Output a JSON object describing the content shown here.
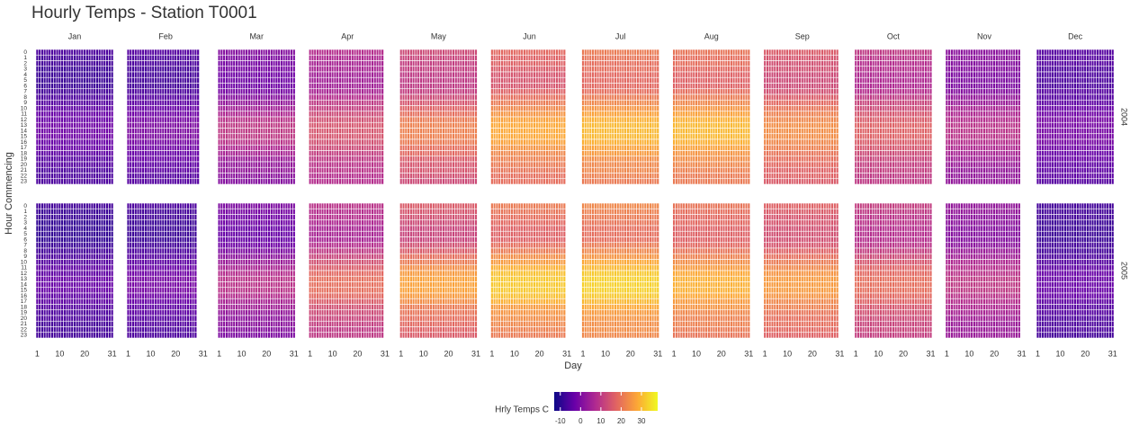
{
  "chart_data": {
    "type": "heatmap",
    "title": "Hourly Temps - Station T0001",
    "x_label": "Day",
    "y_label": "Hour Commencing",
    "legend_title": "Hrly Temps C",
    "months": [
      "Jan",
      "Feb",
      "Mar",
      "Apr",
      "May",
      "Jun",
      "Jul",
      "Aug",
      "Sep",
      "Oct",
      "Nov",
      "Dec"
    ],
    "years": [
      "2004",
      "2005"
    ],
    "xlim": [
      0.5,
      31.5
    ],
    "xticks": [
      1,
      10,
      20,
      31
    ],
    "ylim": [
      -0.5,
      23.5
    ],
    "yticks": [
      0,
      1,
      2,
      3,
      4,
      5,
      6,
      7,
      8,
      9,
      10,
      11,
      12,
      13,
      14,
      15,
      16,
      17,
      18,
      19,
      20,
      21,
      22,
      23
    ],
    "clim": [
      -13,
      38
    ],
    "colorbar_ticks": [
      -10,
      0,
      10,
      20,
      30
    ],
    "colormap": [
      "#0d0887",
      "#6a00a8",
      "#b12a90",
      "#e16462",
      "#fca636",
      "#f0f921"
    ],
    "values": [
      [
        [
          -6,
          -7,
          -7,
          -8,
          -8,
          -8,
          -8,
          -7,
          -6,
          -5,
          -4,
          -3,
          -3,
          -2,
          -2,
          -2,
          -3,
          -3,
          -4,
          -5,
          -5,
          -6,
          -6,
          -6
        ],
        [
          -5,
          -6,
          -6,
          -7,
          -7,
          -7,
          -7,
          -6,
          -5,
          -4,
          -3,
          -2,
          -1,
          0,
          0,
          0,
          -1,
          -2,
          -3,
          -3,
          -4,
          -4,
          -5,
          -5
        ],
        [
          1,
          0,
          -1,
          -1,
          -2,
          -2,
          -2,
          -1,
          1,
          3,
          5,
          7,
          9,
          10,
          10,
          10,
          9,
          7,
          6,
          4,
          3,
          3,
          2,
          1
        ],
        [
          8,
          7,
          6,
          6,
          5,
          5,
          5,
          6,
          8,
          10,
          11,
          13,
          14,
          15,
          15,
          15,
          14,
          13,
          11,
          10,
          9,
          9,
          8,
          8
        ],
        [
          13,
          12,
          11,
          11,
          10,
          10,
          10,
          11,
          13,
          15,
          17,
          19,
          21,
          22,
          22,
          22,
          21,
          19,
          18,
          16,
          15,
          15,
          14,
          13
        ],
        [
          18,
          17,
          17,
          16,
          15,
          15,
          15,
          17,
          19,
          21,
          23,
          25,
          27,
          28,
          28,
          28,
          27,
          25,
          23,
          22,
          21,
          20,
          19,
          19
        ],
        [
          21,
          20,
          19,
          19,
          18,
          18,
          18,
          19,
          21,
          23,
          25,
          27,
          29,
          30,
          30,
          30,
          29,
          27,
          26,
          24,
          23,
          23,
          22,
          21
        ],
        [
          20,
          19,
          19,
          18,
          17,
          17,
          17,
          19,
          21,
          23,
          25,
          27,
          29,
          30,
          30,
          30,
          29,
          27,
          25,
          24,
          23,
          22,
          21,
          21
        ],
        [
          16,
          15,
          14,
          14,
          13,
          13,
          13,
          14,
          16,
          18,
          20,
          22,
          23,
          24,
          24,
          24,
          23,
          22,
          20,
          19,
          18,
          17,
          17,
          16
        ],
        [
          10,
          9,
          8,
          8,
          7,
          7,
          7,
          8,
          10,
          12,
          13,
          15,
          16,
          17,
          17,
          17,
          16,
          15,
          13,
          12,
          11,
          11,
          10,
          10
        ],
        [
          2,
          2,
          1,
          1,
          0,
          0,
          0,
          1,
          3,
          4,
          6,
          7,
          8,
          9,
          9,
          9,
          8,
          7,
          6,
          5,
          4,
          3,
          3,
          3
        ],
        [
          -5,
          -5,
          -5,
          -6,
          -6,
          -6,
          -6,
          -5,
          -5,
          -4,
          -3,
          -2,
          -1,
          -1,
          -1,
          -1,
          -1,
          -2,
          -3,
          -3,
          -4,
          -4,
          -4,
          -5
        ]
      ],
      [
        [
          -7,
          -8,
          -8,
          -9,
          -9,
          -9,
          -9,
          -8,
          -7,
          -6,
          -5,
          -4,
          -4,
          -3,
          -3,
          -3,
          -4,
          -4,
          -5,
          -6,
          -6,
          -7,
          -7,
          -7
        ],
        [
          -6,
          -7,
          -7,
          -8,
          -8,
          -8,
          -8,
          -7,
          -6,
          -5,
          -4,
          -3,
          -2,
          -1,
          -1,
          -1,
          -2,
          -3,
          -4,
          -4,
          -5,
          -5,
          -6,
          -6
        ],
        [
          0,
          -1,
          -2,
          -2,
          -3,
          -3,
          -3,
          -2,
          0,
          2,
          4,
          6,
          8,
          9,
          9,
          9,
          8,
          6,
          5,
          3,
          2,
          2,
          1,
          0
        ],
        [
          9,
          8,
          8,
          7,
          6,
          6,
          6,
          8,
          10,
          12,
          14,
          16,
          18,
          19,
          19,
          19,
          18,
          16,
          14,
          13,
          12,
          11,
          10,
          10
        ],
        [
          16,
          15,
          14,
          13,
          12,
          12,
          12,
          14,
          16,
          19,
          21,
          24,
          26,
          27,
          27,
          27,
          26,
          24,
          21,
          20,
          19,
          18,
          17,
          16
        ],
        [
          21,
          20,
          19,
          18,
          17,
          17,
          17,
          19,
          21,
          24,
          26,
          29,
          31,
          32,
          32,
          32,
          31,
          29,
          26,
          25,
          24,
          23,
          22,
          21
        ],
        [
          23,
          22,
          21,
          20,
          19,
          19,
          19,
          21,
          23,
          25,
          28,
          30,
          32,
          33,
          33,
          33,
          32,
          30,
          28,
          26,
          25,
          24,
          24,
          23
        ],
        [
          20,
          19,
          18,
          18,
          17,
          17,
          17,
          18,
          20,
          22,
          24,
          26,
          28,
          29,
          29,
          29,
          28,
          26,
          25,
          23,
          22,
          22,
          21,
          20
        ],
        [
          17,
          16,
          15,
          15,
          14,
          14,
          14,
          15,
          17,
          19,
          21,
          23,
          25,
          26,
          26,
          26,
          25,
          23,
          22,
          20,
          19,
          19,
          18,
          17
        ],
        [
          11,
          10,
          9,
          9,
          8,
          8,
          8,
          9,
          11,
          13,
          15,
          17,
          18,
          19,
          19,
          19,
          18,
          17,
          15,
          14,
          13,
          12,
          12,
          11
        ],
        [
          3,
          3,
          2,
          2,
          1,
          1,
          1,
          2,
          4,
          5,
          7,
          8,
          9,
          10,
          10,
          10,
          9,
          8,
          7,
          6,
          5,
          4,
          4,
          4
        ],
        [
          -7,
          -7,
          -7,
          -8,
          -8,
          -8,
          -8,
          -7,
          -7,
          -6,
          -5,
          -4,
          -3,
          -3,
          -3,
          -3,
          -3,
          -4,
          -5,
          -5,
          -6,
          -6,
          -6,
          -7
        ]
      ]
    ]
  }
}
